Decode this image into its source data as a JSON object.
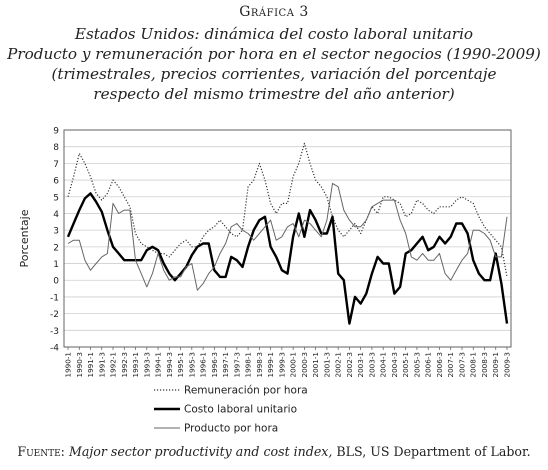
{
  "figure": {
    "label": "Gráfica 3",
    "title_lines": [
      "Estados Unidos: dinámica del costo laboral unitario",
      "Producto y remuneración por hora en el sector negocios (1990-2009)",
      "(trimestrales, precios corrientes, variación del porcentaje",
      "respecto del mismo trimestre del año anterior)"
    ],
    "source": {
      "prefix": "Fuente:",
      "italic": "Major sector productivity and cost index,",
      "rest": " BLS, US Department of Labor."
    }
  },
  "chart_data": {
    "type": "line",
    "title": "",
    "ylabel": "Porcentaje",
    "xlabel": "",
    "ylim": [
      -4,
      9
    ],
    "yticks": [
      -4,
      -3,
      -2,
      -1,
      0,
      1,
      2,
      3,
      4,
      5,
      6,
      7,
      8,
      9
    ],
    "grid": "horizontal",
    "legend_position": "bottom",
    "categories": [
      "1990-1",
      "1990-3",
      "1991-1",
      "1991-3",
      "1992-1",
      "1992-3",
      "1993-1",
      "1993-3",
      "1994-1",
      "1994-3",
      "1995-1",
      "1995-3",
      "1996-1",
      "1996-3",
      "1997-1",
      "1997-3",
      "1998-1",
      "1998-3",
      "1999-1",
      "1999-3",
      "2000-1",
      "2000-3",
      "2001-1",
      "2001-3",
      "2002-1",
      "2002-3",
      "2003-1",
      "2003-3",
      "2004-1",
      "2004-3",
      "2005-1",
      "2005-3",
      "2006-1",
      "2006-3",
      "2007-1",
      "2007-3",
      "2008-1",
      "2008-3",
      "2009-1",
      "2009-3"
    ],
    "x": [
      "1990-1",
      "1990-2",
      "1990-3",
      "1990-4",
      "1991-1",
      "1991-2",
      "1991-3",
      "1991-4",
      "1992-1",
      "1992-2",
      "1992-3",
      "1992-4",
      "1993-1",
      "1993-2",
      "1993-3",
      "1993-4",
      "1994-1",
      "1994-2",
      "1994-3",
      "1994-4",
      "1995-1",
      "1995-2",
      "1995-3",
      "1995-4",
      "1996-1",
      "1996-2",
      "1996-3",
      "1996-4",
      "1997-1",
      "1997-2",
      "1997-3",
      "1997-4",
      "1998-1",
      "1998-2",
      "1998-3",
      "1998-4",
      "1999-1",
      "1999-2",
      "1999-3",
      "1999-4",
      "2000-1",
      "2000-2",
      "2000-3",
      "2000-4",
      "2001-1",
      "2001-2",
      "2001-3",
      "2001-4",
      "2002-1",
      "2002-2",
      "2002-3",
      "2002-4",
      "2003-1",
      "2003-2",
      "2003-3",
      "2003-4",
      "2004-1",
      "2004-2",
      "2004-3",
      "2004-4",
      "2005-1",
      "2005-2",
      "2005-3",
      "2005-4",
      "2006-1",
      "2006-2",
      "2006-3",
      "2006-4",
      "2007-1",
      "2007-2",
      "2007-3",
      "2007-4",
      "2008-1",
      "2008-2",
      "2008-3",
      "2008-4",
      "2009-1",
      "2009-2",
      "2009-3"
    ],
    "series": [
      {
        "name": "Remuneración por hora",
        "style": "dotted",
        "values": [
          5.0,
          6.2,
          7.6,
          7.0,
          6.2,
          5.2,
          4.8,
          5.2,
          6.0,
          5.6,
          5.0,
          4.4,
          2.8,
          2.2,
          2.0,
          1.8,
          1.6,
          1.6,
          1.4,
          1.8,
          2.2,
          2.4,
          2.0,
          2.0,
          2.6,
          3.0,
          3.2,
          3.6,
          3.2,
          2.8,
          2.6,
          3.0,
          5.6,
          6.0,
          7.0,
          6.0,
          4.6,
          4.0,
          4.6,
          4.6,
          6.2,
          7.0,
          8.2,
          7.0,
          6.0,
          5.6,
          5.0,
          3.8,
          3.0,
          2.6,
          3.0,
          3.4,
          2.8,
          3.6,
          4.4,
          4.0,
          5.0,
          5.0,
          4.8,
          4.6,
          3.8,
          4.0,
          4.8,
          4.6,
          4.2,
          4.0,
          4.4,
          4.4,
          4.4,
          4.8,
          5.0,
          4.8,
          4.6,
          3.8,
          3.2,
          2.8,
          2.4,
          2.0,
          0.2
        ]
      },
      {
        "name": "Costo laboral unitario",
        "style": "thick",
        "values": [
          2.6,
          3.4,
          4.2,
          4.9,
          5.2,
          4.7,
          4.1,
          3.0,
          2.0,
          1.6,
          1.2,
          1.2,
          1.2,
          1.2,
          1.8,
          2.0,
          1.8,
          1.0,
          0.4,
          0.0,
          0.4,
          0.8,
          1.5,
          2.0,
          2.2,
          2.2,
          0.6,
          0.2,
          0.2,
          1.4,
          1.2,
          0.8,
          2.0,
          3.0,
          3.6,
          3.8,
          2.0,
          1.4,
          0.6,
          0.4,
          2.6,
          4.0,
          2.6,
          4.2,
          3.6,
          2.8,
          2.8,
          3.8,
          0.4,
          0.0,
          -2.6,
          -1.0,
          -1.4,
          -0.8,
          0.4,
          1.4,
          1.0,
          1.0,
          -0.8,
          -0.4,
          1.6,
          1.8,
          2.2,
          2.6,
          1.8,
          2.0,
          2.6,
          2.2,
          2.6,
          3.4,
          3.4,
          2.8,
          1.2,
          0.4,
          0.0,
          0.0,
          1.6,
          -0.2,
          -2.6
        ]
      },
      {
        "name": "Producto por hora",
        "style": "thin",
        "values": [
          2.2,
          2.4,
          2.4,
          1.2,
          0.6,
          1.0,
          1.4,
          1.6,
          4.6,
          4.0,
          4.2,
          4.2,
          1.2,
          0.4,
          -0.4,
          0.4,
          1.6,
          0.6,
          0.0,
          0.2,
          0.2,
          0.8,
          1.0,
          -0.6,
          -0.2,
          0.4,
          0.8,
          1.6,
          2.2,
          3.2,
          3.4,
          3.0,
          2.8,
          2.4,
          2.8,
          3.2,
          3.6,
          2.4,
          2.6,
          3.2,
          3.4,
          2.6,
          3.6,
          3.4,
          3.0,
          2.6,
          3.6,
          5.8,
          5.6,
          4.2,
          3.6,
          3.2,
          3.2,
          3.6,
          4.4,
          4.6,
          4.8,
          4.8,
          4.8,
          3.6,
          2.8,
          1.4,
          1.2,
          1.6,
          1.2,
          1.2,
          1.6,
          0.4,
          0.0,
          0.6,
          1.2,
          1.6,
          3.0,
          3.0,
          2.8,
          2.4,
          1.4,
          1.4,
          3.8
        ]
      }
    ]
  }
}
